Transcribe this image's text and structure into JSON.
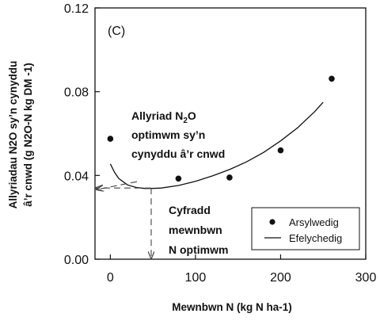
{
  "chart_data": {
    "type": "scatter",
    "panel_label": "(C)",
    "xlabel": "Mewnbwn N (kg N ha-1)",
    "ylabel_line1": "Allyriadau  N2O sy’n cynyddu",
    "ylabel_line2": "â’r cnwd (g N2O-N kg DM -1)",
    "xlim": [
      -18,
      300
    ],
    "ylim": [
      0,
      0.12
    ],
    "x_ticks": [
      0,
      100,
      200,
      300
    ],
    "y_ticks": [
      0.0,
      0.04,
      0.08,
      0.12
    ],
    "x_tick_labels": [
      "0",
      "100",
      "200",
      "300"
    ],
    "y_tick_labels": [
      "0.00",
      "0.04",
      "0.08",
      "0.12"
    ],
    "series": [
      {
        "name": "Arsylwedig",
        "kind": "points",
        "x": [
          0,
          80,
          140,
          200,
          260
        ],
        "y": [
          0.0575,
          0.0385,
          0.039,
          0.052,
          0.0862
        ]
      },
      {
        "name": "Efelychedig",
        "kind": "line",
        "x": [
          0,
          5,
          10,
          20,
          30,
          40,
          50,
          60,
          80,
          100,
          120,
          140,
          160,
          180,
          200,
          220,
          240,
          250
        ],
        "y": [
          0.0455,
          0.0415,
          0.0385,
          0.0355,
          0.0343,
          0.0338,
          0.0338,
          0.034,
          0.0352,
          0.0372,
          0.0398,
          0.0428,
          0.0465,
          0.051,
          0.0565,
          0.0628,
          0.0705,
          0.075
        ]
      }
    ],
    "optimum": {
      "x": 48,
      "y": 0.034
    },
    "legend": {
      "position": "bottom-right",
      "entries": [
        "Arsylwedig",
        "Efelychedig"
      ]
    },
    "annotations": {
      "emission_line1": "Allyriad N",
      "emission_sub": "2",
      "emission_line1_end": "O",
      "emission_line2": "optimwm sy’n",
      "emission_line3": "cynyddu â’r cnwd",
      "input_line1": "Cyfradd",
      "input_line2": "mewnbwn",
      "input_line3": "N optimwm"
    },
    "grid": false
  }
}
